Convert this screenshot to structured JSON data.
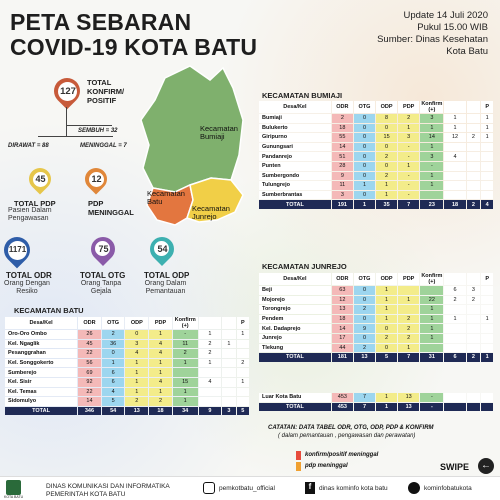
{
  "title_line1": "PETA SEBARAN",
  "title_line2": "COVID-19 KOTA BATU",
  "update": {
    "line1": "Update 14 Juli 2020",
    "line2": "Pukul 15.00 WIB",
    "line3": "Sumber: Dinas Kesehatan",
    "line4": "Kota Batu"
  },
  "stats": {
    "konfirm_value": "127",
    "konfirm_label": "TOTAL KONFIRM/ POSITIF",
    "sembuh": "SEMBUH = 32",
    "dirawat": "DIRAWAT = 88",
    "meninggal": "MENINGGAL = 7",
    "pdp_value": "45",
    "pdp_label": "TOTAL PDP",
    "pdp_sub": "Pasien Dalam Pengawasan",
    "pdp_men_value": "12",
    "pdp_men_label": "PDP MENINGGAL",
    "odr_value": "1171",
    "odr_label": "TOTAL ODR",
    "odr_sub": "Orang Dengan Resiko",
    "otg_value": "75",
    "otg_label": "TOTAL OTG",
    "otg_sub": "Orang Tanpa Gejala",
    "odp_value": "54",
    "odp_label": "TOTAL ODP",
    "odp_sub": "Orang Dalam Pemantauan"
  },
  "map": {
    "bumiaji": "Kecamatan Bumiaji",
    "batu": "Kecamatan Batu",
    "junrejo": "Kecamatan Junrejo"
  },
  "headers": [
    "Desa/Kel",
    "ODR",
    "OTG",
    "ODP",
    "PDP",
    "Konfirm (+)",
    "",
    "",
    "P"
  ],
  "kec_batu": {
    "title": "KECAMATAN BATU",
    "rows": [
      [
        "Oro-Oro Ombo",
        "26",
        "2",
        "0",
        "1",
        "-",
        "1",
        "",
        "1"
      ],
      [
        "Kel. Ngaglik",
        "45",
        "36",
        "3",
        "4",
        "11",
        "2",
        "1",
        ""
      ],
      [
        "Pesanggrahan",
        "22",
        "0",
        "4",
        "4",
        "2",
        "2",
        "",
        ""
      ],
      [
        "Kel. Songgokerto",
        "56",
        "1",
        "1",
        "1",
        "1",
        "1",
        "",
        "2"
      ],
      [
        "Sumberejo",
        "69",
        "6",
        "1",
        "1",
        "",
        "",
        "",
        ""
      ],
      [
        "Kel. Sisir",
        "92",
        "6",
        "1",
        "4",
        "15",
        "4",
        "",
        "1"
      ],
      [
        "Kel. Temas",
        "22",
        "4",
        "1",
        "1",
        "1",
        "",
        "",
        ""
      ],
      [
        "Sidomulyo",
        "14",
        "5",
        "2",
        "2",
        "1",
        "",
        "",
        ""
      ]
    ],
    "total": [
      "TOTAL",
      "346",
      "54",
      "13",
      "18",
      "34",
      "9",
      "3",
      "5"
    ]
  },
  "kec_bumiaji": {
    "title": "KECAMATAN BUMIAJI",
    "rows": [
      [
        "Bumiaji",
        "2",
        "0",
        "8",
        "2",
        "3",
        "1",
        "",
        "1"
      ],
      [
        "Bulukerto",
        "18",
        "0",
        "0",
        "1",
        "1",
        "1",
        "",
        "1"
      ],
      [
        "Giripurno",
        "55",
        "0",
        "15",
        "3",
        "14",
        "12",
        "2",
        "1"
      ],
      [
        "Gunungsari",
        "14",
        "0",
        "0",
        "-",
        "1",
        "",
        "",
        ""
      ],
      [
        "Pandanrejo",
        "51",
        "0",
        "2",
        "-",
        "3",
        "4",
        "",
        ""
      ],
      [
        "Punten",
        "28",
        "0",
        "0",
        "1",
        "-",
        "",
        "",
        ""
      ],
      [
        "Sumbergondo",
        "9",
        "0",
        "2",
        "-",
        "1",
        "",
        "",
        ""
      ],
      [
        "Tulungrejo",
        "11",
        "1",
        "1",
        "-",
        "1",
        "",
        "",
        ""
      ],
      [
        "Sumberbrantas",
        "3",
        "0",
        "1",
        "-",
        "",
        "",
        "",
        ""
      ]
    ],
    "total": [
      "TOTAL",
      "191",
      "1",
      "35",
      "7",
      "23",
      "18",
      "2",
      "4"
    ]
  },
  "kec_junrejo": {
    "title": "KECAMATAN JUNREJO",
    "rows": [
      [
        "Beji",
        "63",
        "0",
        "1",
        "",
        "",
        "6",
        "3",
        ""
      ],
      [
        "Mojorejo",
        "12",
        "0",
        "1",
        "1",
        "22",
        "2",
        "2",
        ""
      ],
      [
        "Torongrejo",
        "13",
        "2",
        "1",
        "",
        "1",
        "",
        "",
        ""
      ],
      [
        "Pendem",
        "18",
        "0",
        "1",
        "2",
        "1",
        "1",
        "",
        "1"
      ],
      [
        "Kel. Dadaprejo",
        "14",
        "9",
        "0",
        "2",
        "1",
        "",
        "",
        ""
      ],
      [
        "Junrejo",
        "17",
        "0",
        "2",
        "2",
        "1",
        "",
        "",
        ""
      ],
      [
        "Tlekung",
        "44",
        "2",
        "0",
        "1",
        "",
        "",
        "",
        ""
      ]
    ],
    "total": [
      "TOTAL",
      "181",
      "13",
      "5",
      "7",
      "31",
      "6",
      "2",
      "1"
    ]
  },
  "luar": {
    "row": [
      "Luar Kota Batu",
      "453",
      "7",
      "1",
      "13",
      "-",
      "",
      "",
      ""
    ],
    "total": [
      "TOTAL",
      "453",
      "7",
      "1",
      "13",
      "-",
      "",
      "",
      ""
    ]
  },
  "catatan": {
    "line1": "CATATAN: DATA TABEL ODR, OTG, ODP, PDP & KONFIRM",
    "line2": "( dalam pemantauan , pengawasan dan perawatan)",
    "konfirm": "konfirm/positif meninggal",
    "pdp": "pdp meninggal"
  },
  "swipe": "SWIPE",
  "footer": {
    "logo": "KOTA BATU",
    "dinas1": "DINAS KOMUNIKASI DAN INFORMATIKA",
    "dinas2": "PEMERINTAH KOTA BATU",
    "ig": "pemkotbatu_official",
    "fb": "dinas kominfo kota batu",
    "tw": "kominfobatukota"
  },
  "colors": {
    "odr": "#f4b9b8",
    "otg": "#9dd6ef",
    "pdp": "#f3ec8a",
    "konfirm": "#9fd39a",
    "total": "#1f2a55"
  }
}
